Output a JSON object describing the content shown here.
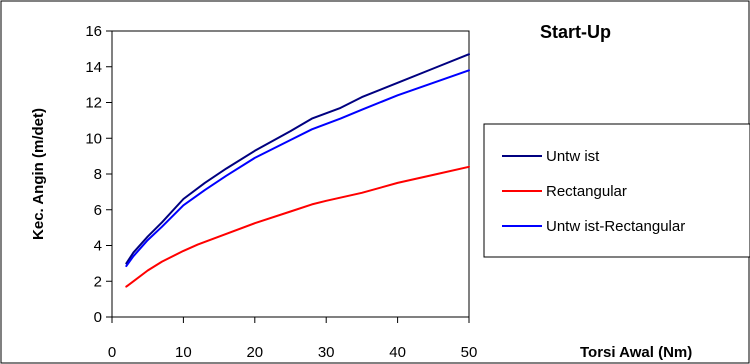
{
  "chart_data": {
    "type": "line",
    "title": "Start-Up",
    "xlabel": "Torsi Awal (Nm)",
    "ylabel": "Kec. Angin (m/det)",
    "xlim": [
      0,
      50
    ],
    "ylim": [
      0,
      16
    ],
    "xticks": [
      0,
      10,
      20,
      30,
      40,
      50
    ],
    "yticks": [
      0,
      2,
      4,
      6,
      8,
      10,
      12,
      14,
      16
    ],
    "grid": false,
    "legend_position": "right",
    "series": [
      {
        "name": "Untw ist",
        "color": "#000080",
        "x": [
          2,
          3,
          5,
          7,
          10,
          13,
          16,
          20,
          25,
          28,
          32,
          35,
          40,
          45,
          50
        ],
        "y": [
          3.0,
          3.6,
          4.5,
          5.3,
          6.6,
          7.5,
          8.3,
          9.3,
          10.4,
          11.1,
          11.7,
          12.3,
          13.1,
          13.9,
          14.7
        ]
      },
      {
        "name": "Rectangular",
        "color": "#ff0000",
        "x": [
          2,
          3,
          5,
          7,
          10,
          12,
          15,
          20,
          25,
          28,
          30,
          35,
          40,
          45,
          50
        ],
        "y": [
          1.7,
          2.0,
          2.6,
          3.1,
          3.7,
          4.05,
          4.5,
          5.25,
          5.9,
          6.3,
          6.5,
          6.95,
          7.5,
          7.95,
          8.4
        ]
      },
      {
        "name": "Untw ist-Rectangular",
        "color": "#0000ff",
        "x": [
          2,
          3,
          5,
          7,
          10,
          13,
          16,
          20,
          25,
          28,
          32,
          35,
          40,
          45,
          50
        ],
        "y": [
          2.85,
          3.4,
          4.3,
          5.05,
          6.25,
          7.1,
          7.9,
          8.9,
          9.9,
          10.5,
          11.1,
          11.6,
          12.4,
          13.1,
          13.8
        ]
      }
    ]
  }
}
